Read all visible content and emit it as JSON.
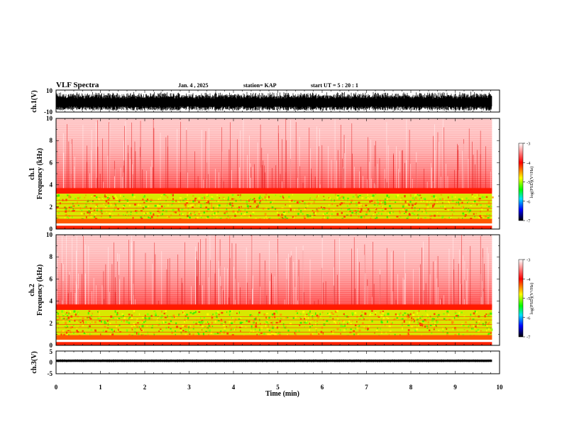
{
  "header": {
    "title": "VLF Spectra",
    "date": "Jan. 4 , 2025",
    "station": "station= KAP",
    "start": "start UT = 5 : 20 : 1"
  },
  "chart_data": [
    {
      "type": "line",
      "name": "ch1-waveform",
      "ylabel": "ch.1(V)",
      "ylim": [
        -10,
        10
      ],
      "yticks": [
        "10",
        "-10"
      ],
      "xlim": [
        0,
        10
      ],
      "data_end_min": 9.83,
      "grid": false
    },
    {
      "type": "heatmap",
      "name": "ch1-spectrogram",
      "ylabel_line1": "ch.1",
      "ylabel_line2": "Frequency (kHz)",
      "ylim": [
        0,
        10
      ],
      "yticks": [
        "0",
        "2",
        "4",
        "6",
        "8",
        "10"
      ],
      "xlim": [
        0,
        10
      ],
      "data_end_min": 9.83,
      "colorbar": {
        "label": "log(PSD)(V²/Hz)",
        "range": [
          -7,
          -3
        ],
        "ticks": [
          "-3",
          "-4",
          "-5",
          "-6",
          "-7"
        ],
        "colors": [
          "#ffffff",
          "#ff0000",
          "#ffff00",
          "#00ff00",
          "#00e0ff",
          "#0000ff",
          "#000000"
        ]
      }
    },
    {
      "type": "heatmap",
      "name": "ch2-spectrogram",
      "ylabel_line1": "ch.2",
      "ylabel_line2": "Frequency (kHz)",
      "ylim": [
        0,
        10
      ],
      "yticks": [
        "0",
        "2",
        "4",
        "6",
        "8",
        "10"
      ],
      "xlim": [
        0,
        10
      ],
      "data_end_min": 9.83,
      "colorbar": {
        "label": "log(PSD)(V²/Hz)",
        "range": [
          -7,
          -3
        ],
        "ticks": [
          "-3",
          "-4",
          "-5",
          "-6",
          "-7"
        ],
        "colors": [
          "#ffffff",
          "#ff0000",
          "#ffff00",
          "#00ff00",
          "#00e0ff",
          "#0000ff",
          "#000000"
        ]
      }
    },
    {
      "type": "line",
      "name": "ch3-waveform",
      "ylabel": "ch.3(V)",
      "ylim": [
        -5,
        5
      ],
      "yticks": [
        "5",
        "0",
        "-5"
      ],
      "xlim": [
        0,
        10
      ],
      "data_end_min": 9.83,
      "xlabel": "Time (min)",
      "xticks": [
        "0",
        "1",
        "2",
        "3",
        "4",
        "5",
        "6",
        "7",
        "8",
        "9",
        "10"
      ],
      "grid": false
    }
  ]
}
